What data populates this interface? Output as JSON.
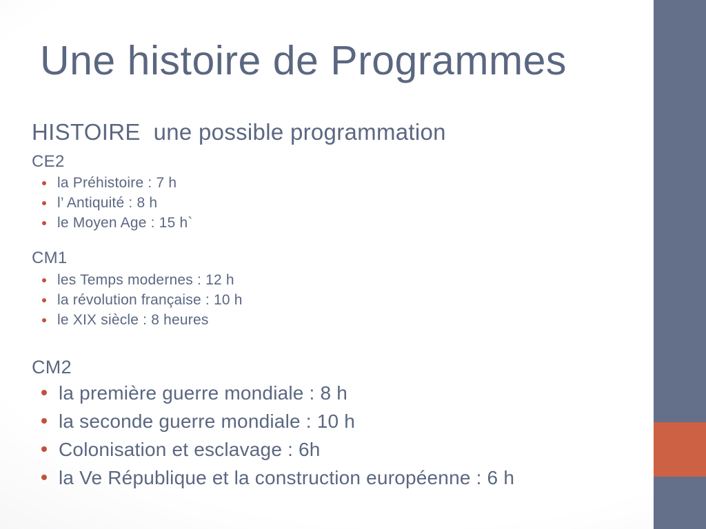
{
  "slide": {
    "title": "Une histoire de Programmes",
    "subtitle": "HISTOIRE  une possible programmation",
    "sections": [
      {
        "label": "CE2",
        "items": [
          "la Préhistoire : 7 h",
          "l’ Antiquité : 8 h",
          "le Moyen Age : 15 h`"
        ]
      },
      {
        "label": "CM1",
        "items": [
          "les Temps modernes : 12 h",
          "la révolution française : 10 h",
          "le XIX siècle : 8 heures"
        ]
      },
      {
        "label": "CM2",
        "items": [
          "la première guerre mondiale : 8 h",
          "la seconde guerre mondiale : 10 h",
          "Colonisation et esclavage : 6h",
          "la Ve République et la construction européenne : 6 h"
        ]
      }
    ],
    "colors": {
      "text": "#5b6781",
      "bullet_dot": "#c0523c",
      "sidebar_bar": "#646f8a",
      "accent_block": "#cd6144",
      "background_edge": "#e4e4e8"
    }
  }
}
